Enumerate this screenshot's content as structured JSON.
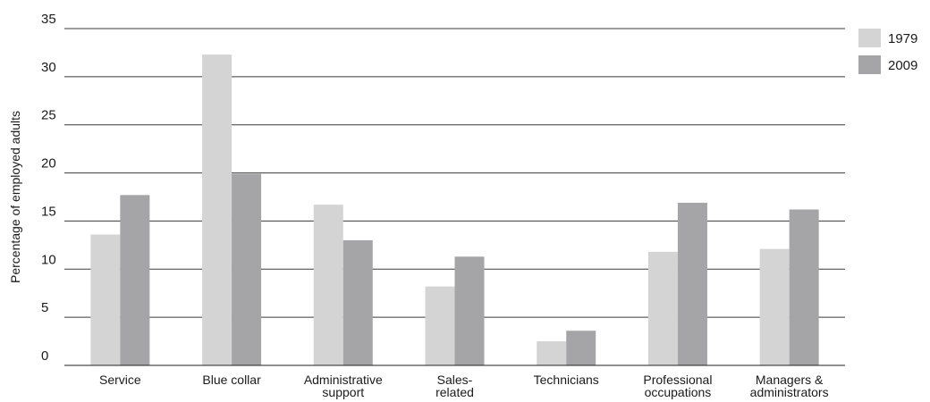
{
  "chart_data": {
    "type": "bar",
    "categories": [
      [
        "Service"
      ],
      [
        "Blue collar"
      ],
      [
        "Administrative",
        "support"
      ],
      [
        "Sales-",
        "related"
      ],
      [
        "Technicians"
      ],
      [
        "Professional",
        "occupations"
      ],
      [
        "Managers &",
        "administrators"
      ]
    ],
    "series": [
      {
        "name": "1979",
        "color": "#d4d4d4",
        "values": [
          13.6,
          32.3,
          16.7,
          8.2,
          2.5,
          11.8,
          12.1
        ]
      },
      {
        "name": "2009",
        "color": "#a5a5a7",
        "values": [
          17.7,
          19.9,
          13.0,
          11.3,
          3.6,
          16.9,
          16.2
        ]
      }
    ],
    "title": "",
    "xlabel": "",
    "ylabel": "Percentage of employed adults",
    "ylim": [
      0,
      35
    ],
    "yticks": [
      0,
      5,
      10,
      15,
      20,
      25,
      30,
      35
    ],
    "grid": true,
    "legend_position": "top-right"
  }
}
